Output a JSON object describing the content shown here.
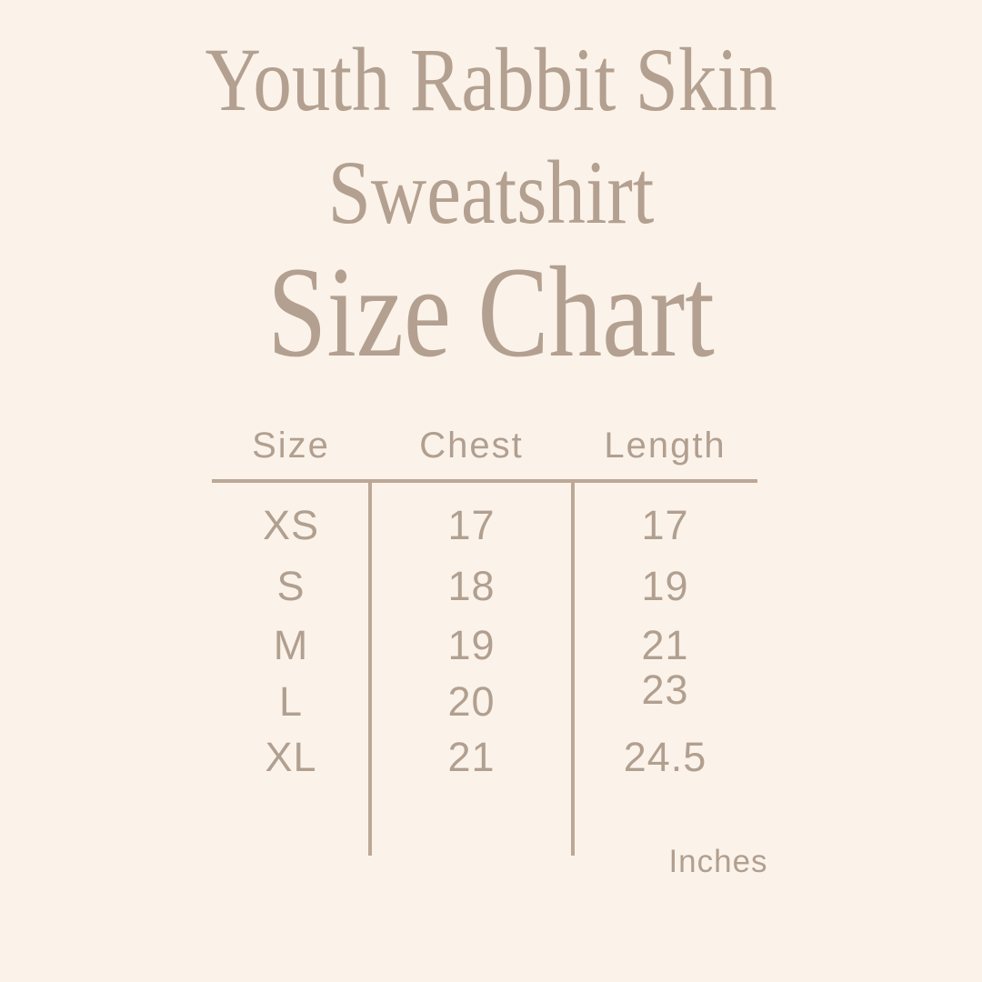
{
  "colors": {
    "background": "#fbf3e9",
    "text": "#b3a090",
    "line": "#bca896"
  },
  "header": {
    "title_line1": "Youth Rabbit Skin",
    "title_line2": "Sweatshirt",
    "subtitle": "Size Chart"
  },
  "chart_data": {
    "type": "table",
    "title": "Youth Rabbit Skin Sweatshirt",
    "subtitle": "Size Chart",
    "columns": [
      "Size",
      "Chest",
      "Length"
    ],
    "rows": [
      [
        "XS",
        "17",
        "17"
      ],
      [
        "S",
        "18",
        "19"
      ],
      [
        "M",
        "19",
        "21"
      ],
      [
        "L",
        "20",
        "23"
      ],
      [
        "XL",
        "21",
        "24.5"
      ]
    ],
    "units_label": "Inches"
  }
}
